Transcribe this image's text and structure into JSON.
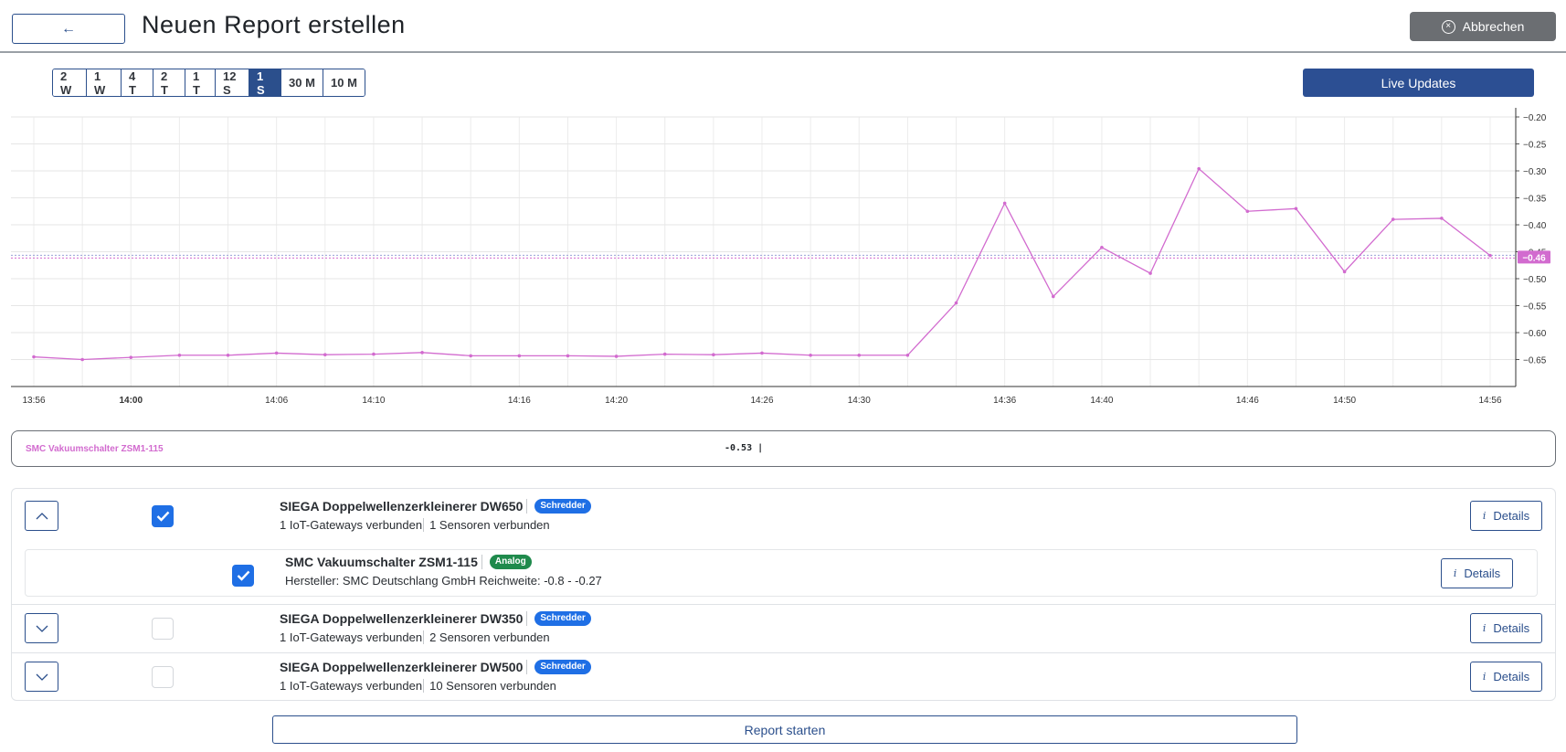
{
  "header": {
    "back_label": "←",
    "title": "Neuen Report erstellen",
    "cancel_label": "Abbrechen",
    "cancel_icon": "x-circle-icon"
  },
  "range": {
    "options": [
      "2 W",
      "1 W",
      "4 T",
      "2 T",
      "1 T",
      "12 S",
      "1 S",
      "30 M",
      "10 M"
    ],
    "active": "1 S"
  },
  "live_label": "Live Updates",
  "chart_data": {
    "type": "line",
    "x_tick_labels": [
      "13:56",
      "14:00",
      "14:06",
      "14:10",
      "14:16",
      "14:20",
      "14:26",
      "14:30",
      "14:36",
      "14:40",
      "14:46",
      "14:50",
      "14:56"
    ],
    "y_tick_labels": [
      "-0.20",
      "-0.25",
      "-0.30",
      "-0.35",
      "-0.40",
      "-0.45",
      "-0.50",
      "-0.55",
      "-0.60",
      "-0.65"
    ],
    "ylim": [
      -0.7,
      -0.2
    ],
    "grid": true,
    "series": [
      {
        "name": "SMC Vakuumschalter ZSM1-115",
        "color": "#d26bcf",
        "x": [
          "13:56",
          "13:58",
          "14:00",
          "14:02",
          "14:04",
          "14:06",
          "14:08",
          "14:10",
          "14:12",
          "14:14",
          "14:16",
          "14:18",
          "14:20",
          "14:22",
          "14:24",
          "14:26",
          "14:28",
          "14:30",
          "14:32",
          "14:34",
          "14:36",
          "14:38",
          "14:40",
          "14:42",
          "14:44",
          "14:46",
          "14:48",
          "14:50",
          "14:52",
          "14:54",
          "14:56"
        ],
        "values": [
          -0.645,
          -0.65,
          -0.646,
          -0.642,
          -0.642,
          -0.638,
          -0.641,
          -0.64,
          -0.637,
          -0.643,
          -0.643,
          -0.643,
          -0.644,
          -0.64,
          -0.641,
          -0.638,
          -0.642,
          -0.642,
          -0.642,
          -0.545,
          -0.36,
          -0.533,
          -0.442,
          -0.49,
          -0.296,
          -0.375,
          -0.37,
          -0.487,
          -0.39,
          -0.388,
          -0.457
        ]
      }
    ],
    "current_value_label": "-0.46",
    "current_value": -0.46
  },
  "legend": {
    "series_name": "SMC Vakuumschalter ZSM1-115",
    "value": "-0.53  |"
  },
  "machines": [
    {
      "name": "SIEGA Doppelwellenzerkleinerer DW650",
      "badge": "Schredder",
      "gateways": "1 IoT-Gateways verbunden",
      "sensors": "1 Sensoren verbunden",
      "checked": true,
      "expanded": true,
      "details_label": "Details",
      "sensor": {
        "name": "SMC Vakuumschalter ZSM1-115",
        "badge": "Analog",
        "info": "Hersteller: SMC Deutschlang GmbH Reichweite: -0.8 - -0.27",
        "checked": true,
        "details_label": "Details"
      }
    },
    {
      "name": "SIEGA Doppelwellenzerkleinerer DW350",
      "badge": "Schredder",
      "gateways": "1 IoT-Gateways verbunden",
      "sensors": "2 Sensoren verbunden",
      "checked": false,
      "expanded": false,
      "details_label": "Details"
    },
    {
      "name": "SIEGA Doppelwellenzerkleinerer DW500",
      "badge": "Schredder",
      "gateways": "1 IoT-Gateways verbunden",
      "sensors": "10 Sensoren verbunden",
      "checked": false,
      "expanded": false,
      "details_label": "Details"
    }
  ],
  "start_label": "Report starten"
}
